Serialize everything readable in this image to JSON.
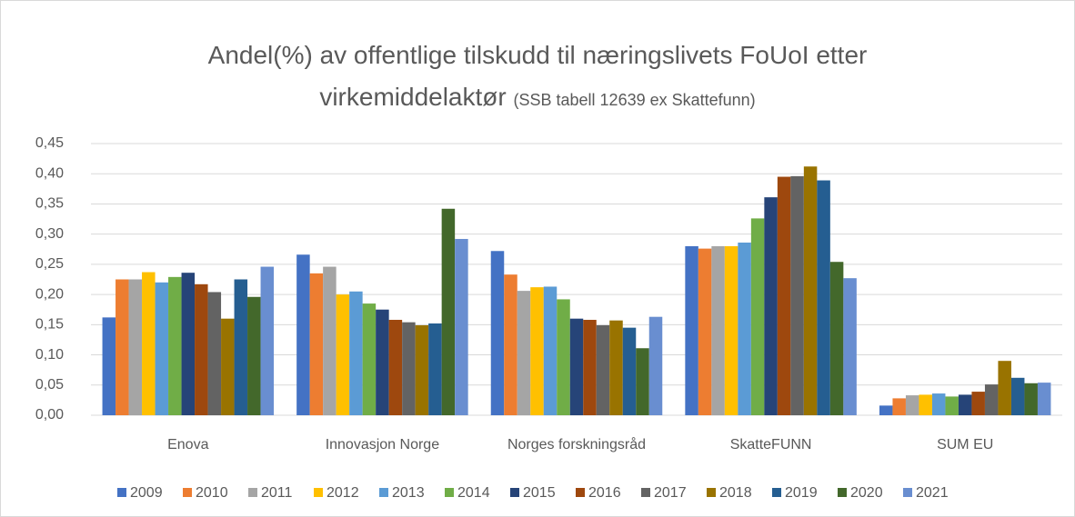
{
  "chart_data": {
    "type": "bar",
    "title": "Andel(%) av offentlige tilskudd til næringslivets FoUoI etter virkemiddelaktør",
    "subtitle": "(SSB tabell 12639 ex Skattefunn)",
    "categories": [
      "Enova",
      "Innovasjon Norge",
      "Norges forskningsråd",
      "SkatteFUNN",
      "SUM EU"
    ],
    "series": [
      {
        "name": "2009",
        "color": "#4472c4",
        "values": [
          0.162,
          0.266,
          0.272,
          0.28,
          0.016
        ]
      },
      {
        "name": "2010",
        "color": "#ed7d31",
        "values": [
          0.225,
          0.235,
          0.233,
          0.276,
          0.028
        ]
      },
      {
        "name": "2011",
        "color": "#a5a5a5",
        "values": [
          0.225,
          0.246,
          0.206,
          0.28,
          0.033
        ]
      },
      {
        "name": "2012",
        "color": "#ffc000",
        "values": [
          0.237,
          0.2,
          0.212,
          0.28,
          0.034
        ]
      },
      {
        "name": "2013",
        "color": "#5b9bd5",
        "values": [
          0.22,
          0.205,
          0.213,
          0.286,
          0.036
        ]
      },
      {
        "name": "2014",
        "color": "#70ad47",
        "values": [
          0.229,
          0.185,
          0.192,
          0.326,
          0.031
        ]
      },
      {
        "name": "2015",
        "color": "#264478",
        "values": [
          0.236,
          0.175,
          0.16,
          0.361,
          0.034
        ]
      },
      {
        "name": "2016",
        "color": "#9e480e",
        "values": [
          0.217,
          0.158,
          0.158,
          0.395,
          0.039
        ]
      },
      {
        "name": "2017",
        "color": "#636363",
        "values": [
          0.204,
          0.154,
          0.149,
          0.396,
          0.051
        ]
      },
      {
        "name": "2018",
        "color": "#997300",
        "values": [
          0.16,
          0.149,
          0.157,
          0.412,
          0.09
        ]
      },
      {
        "name": "2019",
        "color": "#255e91",
        "values": [
          0.225,
          0.152,
          0.145,
          0.389,
          0.062
        ]
      },
      {
        "name": "2020",
        "color": "#43682b",
        "values": [
          0.196,
          0.342,
          0.111,
          0.254,
          0.053
        ]
      },
      {
        "name": "2021",
        "color": "#698ed0",
        "values": [
          0.246,
          0.292,
          0.163,
          0.227,
          0.054
        ]
      }
    ],
    "ylim": [
      0,
      0.45
    ],
    "yticks": [
      {
        "value": 0,
        "label": "0,00"
      },
      {
        "value": 0.05,
        "label": "0,05"
      },
      {
        "value": 0.1,
        "label": "0,10"
      },
      {
        "value": 0.15,
        "label": "0,15"
      },
      {
        "value": 0.2,
        "label": "0,20"
      },
      {
        "value": 0.25,
        "label": "0,25"
      },
      {
        "value": 0.3,
        "label": "0,30"
      },
      {
        "value": 0.35,
        "label": "0,35"
      },
      {
        "value": 0.4,
        "label": "0,40"
      },
      {
        "value": 0.45,
        "label": "0,45"
      }
    ],
    "grid": true,
    "legend": "bottom"
  }
}
